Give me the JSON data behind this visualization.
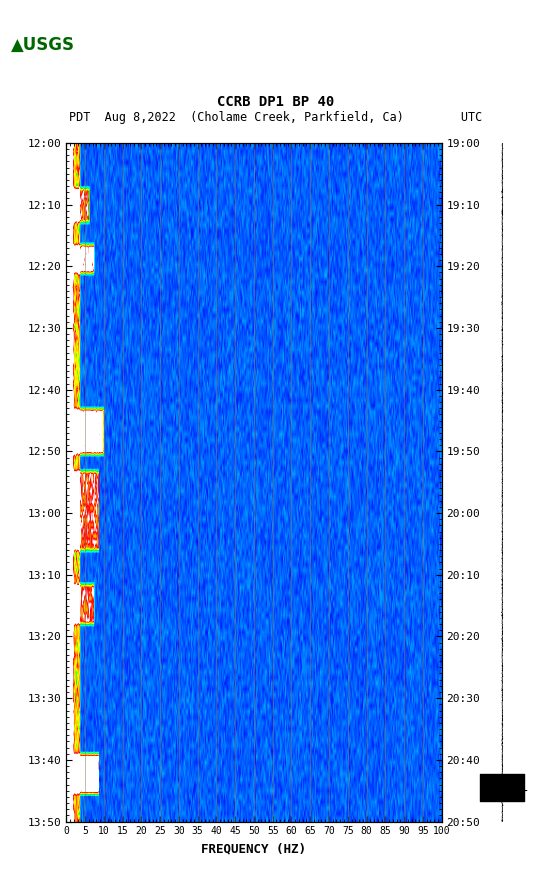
{
  "title_line1": "CCRB DP1 BP 40",
  "title_line2": "PDT  Aug 8,2022  (Cholame Creek, Parkfield, Ca)        UTC",
  "xlabel": "FREQUENCY (HZ)",
  "freq_min": 0,
  "freq_max": 100,
  "freq_ticks": [
    0,
    5,
    10,
    15,
    20,
    25,
    30,
    35,
    40,
    45,
    50,
    55,
    60,
    65,
    70,
    75,
    80,
    85,
    90,
    95,
    100
  ],
  "time_ticks_left": [
    "12:00",
    "12:10",
    "12:20",
    "12:30",
    "12:40",
    "12:50",
    "13:00",
    "13:10",
    "13:20",
    "13:30",
    "13:40",
    "13:50"
  ],
  "time_ticks_right": [
    "19:00",
    "19:10",
    "19:20",
    "19:30",
    "19:40",
    "19:50",
    "20:00",
    "20:10",
    "20:20",
    "20:30",
    "20:40",
    "20:50"
  ],
  "bg_color": "#ffffff",
  "spectrogram_bg": "#0000aa",
  "vertical_line_color": "#8B7355",
  "n_time_steps": 120,
  "n_freq_bins": 400
}
